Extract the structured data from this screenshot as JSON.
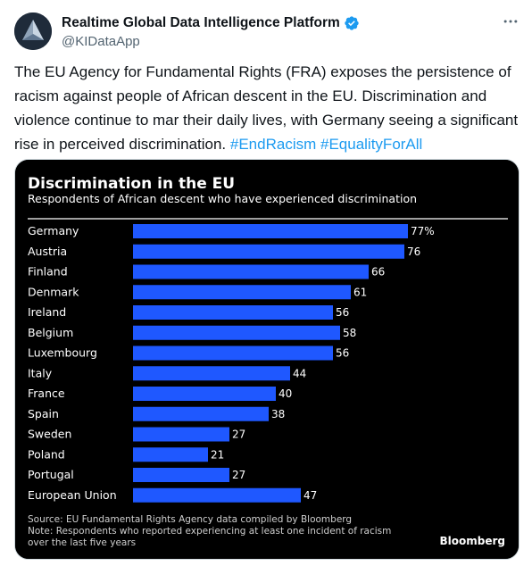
{
  "account": {
    "display_name": "Realtime Global Data Intelligence Platform",
    "handle": "@KIDataApp",
    "verified": true
  },
  "tweet": {
    "text": "The EU Agency for Fundamental Rights (FRA) exposes the persistence of racism against people of African descent in the EU. Discrimination and violence continue to mar their daily lives, with Germany seeing a significant rise in perceived discrimination. ",
    "hashtags": [
      "#EndRacism",
      "#EqualityForAll"
    ]
  },
  "icons": {
    "more": "more-dots-icon",
    "verified": "verified-badge-icon",
    "avatar": "logo-icon"
  },
  "colors": {
    "link": "#1d9bf0",
    "bar": "#1f58ff",
    "chart_bg": "#000000"
  },
  "chart_data": {
    "type": "bar",
    "orientation": "horizontal",
    "title": "Discrimination in the EU",
    "subtitle": "Respondents of African descent who have experienced discrimination",
    "categories": [
      "Germany",
      "Austria",
      "Finland",
      "Denmark",
      "Ireland",
      "Belgium",
      "Luxembourg",
      "Italy",
      "France",
      "Spain",
      "Sweden",
      "Poland",
      "Portugal",
      "European Union"
    ],
    "values": [
      77,
      76,
      66,
      61,
      56,
      58,
      56,
      44,
      40,
      38,
      27,
      21,
      27,
      47
    ],
    "value_labels": [
      "77%",
      "76",
      "66",
      "61",
      "56",
      "58",
      "56",
      "44",
      "40",
      "38",
      "27",
      "21",
      "27",
      "47"
    ],
    "xlim": [
      0,
      77
    ],
    "grid": false,
    "source": "Source: EU Fundamental Rights Agency data compiled by Bloomberg",
    "note_lines": [
      "Note: Respondents who reported experiencing at least one incident of racism",
      "over the last five years"
    ],
    "brand": "Bloomberg"
  }
}
